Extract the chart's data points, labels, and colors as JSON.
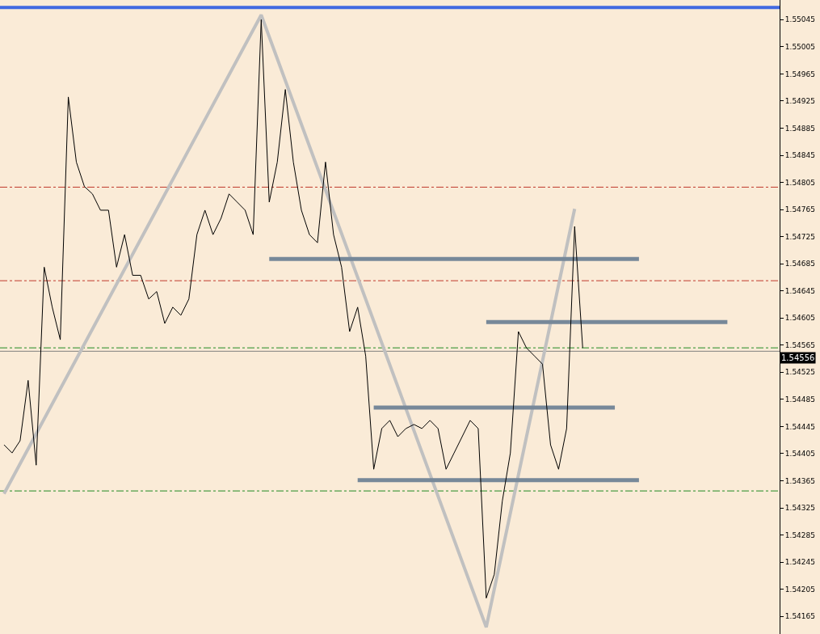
{
  "chart_data": {
    "type": "line",
    "categories": [
      null,
      null,
      null,
      null,
      null,
      null,
      null,
      null,
      null,
      null,
      null,
      null,
      null,
      null,
      null,
      null,
      null,
      null,
      null,
      null,
      null,
      null,
      null,
      null,
      null,
      null,
      null,
      null,
      null,
      null,
      null,
      null,
      null,
      null,
      null,
      null,
      null,
      null,
      null,
      null,
      null,
      null,
      null,
      null,
      null,
      null,
      null,
      null,
      null,
      null,
      null,
      null,
      null,
      null,
      null,
      null,
      null,
      null,
      null,
      null,
      null,
      null,
      null,
      null,
      null,
      null,
      null,
      null,
      null,
      null,
      null,
      null,
      null,
      null,
      null,
      null,
      null,
      null,
      null,
      null,
      null,
      null,
      null,
      null,
      null,
      null,
      null,
      null,
      null,
      null,
      null,
      null,
      null,
      null,
      null,
      null,
      null
    ],
    "series": [
      {
        "color": "#c0c0c0",
        "values": [
          1.54346,
          null,
          null,
          null,
          null,
          null,
          null,
          null,
          null,
          null,
          null,
          null,
          null,
          null,
          null,
          null,
          null,
          null,
          null,
          null,
          null,
          null,
          null,
          null,
          null,
          null,
          null,
          null,
          null,
          null,
          null,
          null,
          1.55052,
          null,
          null,
          null,
          null,
          null,
          null,
          null,
          null,
          null,
          null,
          null,
          null,
          null,
          null,
          null,
          null,
          null,
          null,
          null,
          null,
          null,
          null,
          null,
          null,
          null,
          null,
          null,
          1.54149,
          null,
          null,
          null,
          null,
          null,
          null,
          null,
          null,
          null,
          null,
          1.54766,
          null,
          null,
          null,
          null,
          null,
          null,
          null,
          null,
          null,
          null,
          null,
          null,
          null,
          null,
          null,
          null,
          null,
          null,
          null,
          null,
          null,
          null,
          null,
          null,
          null
        ]
      },
      {
        "color": "#778899",
        "values": [
          null,
          null,
          null,
          null,
          null,
          null,
          null,
          null,
          null,
          null,
          null,
          null,
          null,
          null,
          null,
          null,
          null,
          null,
          null,
          null,
          null,
          null,
          null,
          null,
          null,
          null,
          null,
          null,
          null,
          null,
          null,
          null,
          null,
          1.54692,
          null,
          null,
          null,
          null,
          null,
          null,
          null,
          null,
          null,
          null,
          null,
          null,
          null,
          null,
          null,
          null,
          null,
          null,
          null,
          null,
          null,
          null,
          null,
          null,
          null,
          null,
          null,
          null,
          null,
          null,
          null,
          null,
          null,
          null,
          null,
          null,
          null,
          null,
          null,
          null,
          null,
          null,
          null,
          null,
          null,
          1.54692,
          null,
          null,
          null,
          null,
          null,
          null,
          null,
          null,
          null,
          null,
          null,
          null,
          null,
          null,
          null,
          null,
          null
        ]
      },
      {
        "color": "#778899",
        "values": [
          null,
          null,
          null,
          null,
          null,
          null,
          null,
          null,
          null,
          null,
          null,
          null,
          null,
          null,
          null,
          null,
          null,
          null,
          null,
          null,
          null,
          null,
          null,
          null,
          null,
          null,
          null,
          null,
          null,
          null,
          null,
          null,
          null,
          null,
          null,
          null,
          null,
          null,
          null,
          null,
          null,
          null,
          null,
          null,
          null,
          null,
          null,
          null,
          null,
          null,
          null,
          null,
          null,
          null,
          null,
          null,
          null,
          null,
          null,
          null,
          1.54599,
          null,
          null,
          null,
          null,
          null,
          null,
          null,
          null,
          null,
          null,
          null,
          null,
          null,
          null,
          null,
          null,
          null,
          null,
          null,
          null,
          null,
          null,
          null,
          null,
          null,
          null,
          null,
          null,
          null,
          1.54599,
          null,
          null,
          null,
          null,
          null,
          null
        ]
      },
      {
        "color": "#778899",
        "values": [
          null,
          null,
          null,
          null,
          null,
          null,
          null,
          null,
          null,
          null,
          null,
          null,
          null,
          null,
          null,
          null,
          null,
          null,
          null,
          null,
          null,
          null,
          null,
          null,
          null,
          null,
          null,
          null,
          null,
          null,
          null,
          null,
          null,
          null,
          null,
          null,
          null,
          null,
          null,
          null,
          null,
          null,
          null,
          null,
          null,
          null,
          1.54473,
          null,
          null,
          null,
          null,
          null,
          null,
          null,
          null,
          null,
          null,
          null,
          null,
          null,
          null,
          null,
          null,
          null,
          null,
          null,
          null,
          null,
          null,
          null,
          null,
          null,
          null,
          null,
          null,
          null,
          1.54473,
          null,
          null,
          null,
          null,
          null,
          null,
          null,
          null,
          null,
          null,
          null,
          null,
          null,
          null,
          null,
          null,
          null,
          null,
          null,
          null
        ]
      },
      {
        "color": "#778899",
        "values": [
          null,
          null,
          null,
          null,
          null,
          null,
          null,
          null,
          null,
          null,
          null,
          null,
          null,
          null,
          null,
          null,
          null,
          null,
          null,
          null,
          null,
          null,
          null,
          null,
          null,
          null,
          null,
          null,
          null,
          null,
          null,
          null,
          null,
          null,
          null,
          null,
          null,
          null,
          null,
          null,
          null,
          null,
          null,
          null,
          1.54366,
          null,
          null,
          null,
          null,
          null,
          null,
          null,
          null,
          null,
          null,
          null,
          null,
          null,
          null,
          null,
          null,
          null,
          null,
          null,
          null,
          null,
          null,
          null,
          null,
          null,
          null,
          null,
          null,
          null,
          null,
          null,
          null,
          null,
          null,
          1.54366,
          null,
          null,
          null,
          null,
          null,
          null,
          null,
          null,
          null,
          null,
          null,
          null,
          null,
          null,
          null,
          null,
          null
        ]
      },
      {
        "color": "#000000",
        "values": [
          1.54418,
          1.54406,
          1.54424,
          1.54513,
          1.54388,
          1.5468,
          1.54621,
          1.54573,
          1.54931,
          1.54835,
          1.54799,
          1.54788,
          1.54764,
          1.54764,
          1.5468,
          1.54728,
          1.54668,
          1.54668,
          1.54633,
          1.54644,
          1.54597,
          1.54621,
          1.54609,
          1.54633,
          1.54728,
          1.54764,
          1.54728,
          1.54752,
          1.54788,
          1.54776,
          1.54764,
          1.54728,
          1.55045,
          1.54776,
          1.54835,
          1.54942,
          1.54835,
          1.54764,
          1.54728,
          1.54716,
          1.54835,
          1.54728,
          1.5468,
          1.54585,
          1.54621,
          1.54549,
          1.54382,
          1.54442,
          1.54454,
          1.5443,
          1.54442,
          1.54448,
          1.54442,
          1.54454,
          1.54442,
          1.54382,
          1.54406,
          1.5443,
          1.54454,
          1.54442,
          1.54192,
          1.54227,
          1.54335,
          1.54406,
          1.54585,
          1.54561,
          1.54549,
          1.54537,
          1.54418,
          1.54382,
          1.54442,
          1.5474,
          1.54561,
          null,
          null,
          null,
          null,
          null,
          null,
          null,
          null,
          null,
          null,
          null,
          null,
          null,
          null,
          null,
          null,
          null,
          null,
          null,
          null,
          null,
          null,
          null,
          null
        ]
      }
    ],
    "ylim": [
      1.54139,
      1.55074
    ],
    "yticks": [
      1.54165,
      1.54205,
      1.54245,
      1.54285,
      1.54325,
      1.54365,
      1.54405,
      1.54445,
      1.54485,
      1.54525,
      1.54565,
      1.54605,
      1.54645,
      1.54685,
      1.54725,
      1.54765,
      1.54805,
      1.54845,
      1.54885,
      1.54925,
      1.54965,
      1.55005,
      1.55045
    ],
    "ref_lines": [
      {
        "axis": "y",
        "value": 1.55063,
        "color": "#4169e1",
        "line_style": "solid"
      },
      {
        "axis": "y",
        "value": 1.54798,
        "color": "#c0392b",
        "line_style": "dashed"
      },
      {
        "axis": "y",
        "value": 1.5466,
        "color": "#c0392b",
        "line_style": "dashed"
      },
      {
        "axis": "y",
        "value": 1.54561,
        "color": "#228b22",
        "line_style": "dashed"
      },
      {
        "axis": "y",
        "value": 1.5435,
        "color": "#228b22",
        "line_style": "dashed"
      },
      {
        "axis": "y",
        "value": 1.54556,
        "color": "#808080",
        "line_style": "solid",
        "label": "1.54556"
      }
    ],
    "tick_labels": "y",
    "grid": false
  }
}
